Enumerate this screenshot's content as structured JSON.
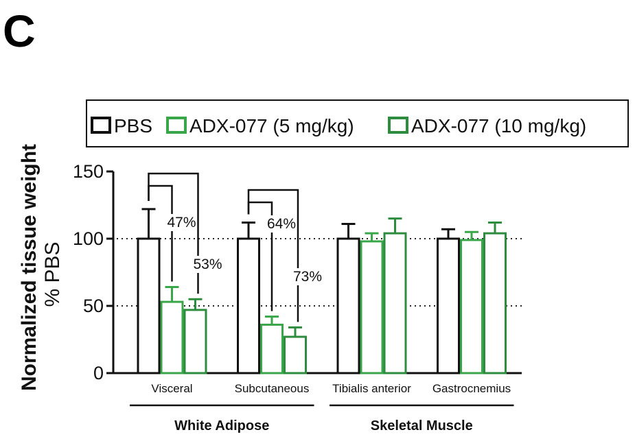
{
  "panel_letter": "C",
  "colors": {
    "pbs": "#111111",
    "adx_5": "#3aa64a",
    "adx_10": "#2e8c3e",
    "axis": "#111111",
    "gridline": "#222222"
  },
  "chart_data": {
    "type": "bar",
    "ylabel": "Normalized tissue weight",
    "ylabel_sub": "% PBS",
    "xlabel": "",
    "ylim": [
      0,
      150
    ],
    "yticks": [
      0,
      50,
      100,
      150
    ],
    "reference_lines": [
      50,
      100
    ],
    "legend_position": "top",
    "categories": [
      "Visceral",
      "Subcutaneous",
      "Tibialis anterior",
      "Gastrocnemius"
    ],
    "groups": [
      {
        "label": "White Adipose",
        "categories": [
          "Visceral",
          "Subcutaneous"
        ]
      },
      {
        "label": "Skeletal Muscle",
        "categories": [
          "Tibialis anterior",
          "Gastrocnemius"
        ]
      }
    ],
    "series": [
      {
        "name": "PBS",
        "values": [
          100,
          100,
          100,
          100
        ],
        "errors": [
          22,
          12,
          11,
          7
        ]
      },
      {
        "name": "ADX-077 (5 mg/kg)",
        "values": [
          53,
          36,
          98,
          99
        ],
        "errors": [
          11,
          6,
          6,
          6
        ]
      },
      {
        "name": "ADX-077 (10 mg/kg)",
        "values": [
          47,
          27,
          104,
          104
        ],
        "errors": [
          8,
          7,
          11,
          8
        ]
      }
    ],
    "annotations": [
      {
        "category": 0,
        "label": "47%",
        "series": 1
      },
      {
        "category": 0,
        "label": "53%",
        "series": 2
      },
      {
        "category": 1,
        "label": "64%",
        "series": 1
      },
      {
        "category": 1,
        "label": "73%",
        "series": 2
      }
    ]
  }
}
